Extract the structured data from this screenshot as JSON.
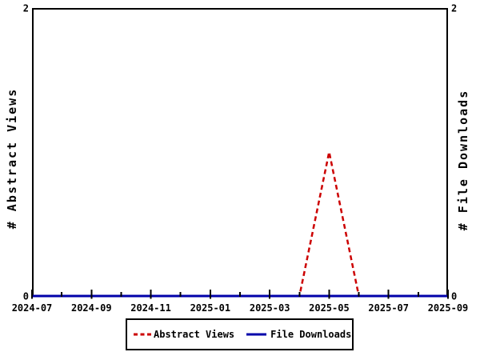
{
  "chart_data": {
    "type": "line",
    "title": "",
    "x": [
      "2024-07",
      "2024-08",
      "2024-09",
      "2024-10",
      "2024-11",
      "2024-12",
      "2025-01",
      "2025-02",
      "2025-03",
      "2025-04",
      "2025-05",
      "2025-06",
      "2025-07",
      "2025-08",
      "2025-09"
    ],
    "x_major_tick_labels": [
      "2024-07",
      "2024-09",
      "2024-11",
      "2025-01",
      "2025-03",
      "2025-05",
      "2025-07",
      "2025-09"
    ],
    "ylabel_left": "# Abstract Views",
    "ylabel_right": "# File Downloads",
    "ylim": [
      0,
      2
    ],
    "ytick_labels": [
      "0",
      "2"
    ],
    "grid": false,
    "legend_position": "bottom-center",
    "background": "#ffffff",
    "axis_color": "#000000",
    "series": [
      {
        "name": "Abstract Views",
        "axis": "left",
        "color": "#cc0000",
        "style": "dashed",
        "values": [
          0,
          0,
          0,
          0,
          0,
          0,
          0,
          0,
          0,
          0,
          1,
          0,
          0,
          0,
          0
        ]
      },
      {
        "name": "File Downloads",
        "axis": "right",
        "color": "#0000aa",
        "style": "solid",
        "values": [
          0,
          0,
          0,
          0,
          0,
          0,
          0,
          0,
          0,
          0,
          0,
          0,
          0,
          0,
          0
        ]
      }
    ]
  },
  "legend": {
    "items": [
      {
        "label": "Abstract Views",
        "color": "#cc0000",
        "style": "dashed"
      },
      {
        "label": "File Downloads",
        "color": "#0000aa",
        "style": "solid"
      }
    ]
  }
}
